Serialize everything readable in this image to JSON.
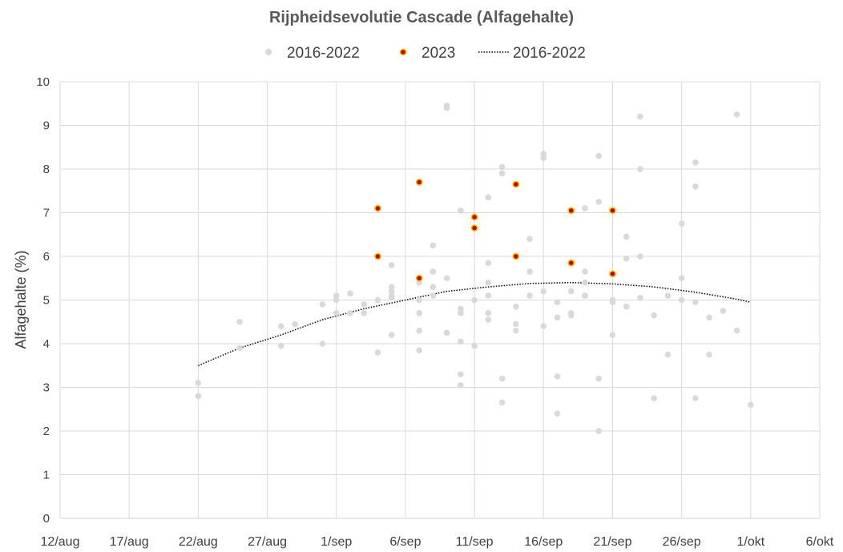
{
  "chart_data": {
    "type": "scatter",
    "title": "Rijpheidsevolutie Cascade (Alfagehalte)",
    "xlabel": "",
    "ylabel": "Alfagehalte (%)",
    "ylim": [
      0,
      10
    ],
    "yticks": [
      "0",
      "1",
      "2",
      "3",
      "4",
      "5",
      "6",
      "7",
      "8",
      "9",
      "10"
    ],
    "xlim": [
      "2023-08-12",
      "2023-10-06"
    ],
    "xticks": [
      "12/aug",
      "17/aug",
      "22/aug",
      "27/aug",
      "1/sep",
      "6/sep",
      "11/sep",
      "16/sep",
      "21/sep",
      "26/sep",
      "1/okt",
      "6/okt"
    ],
    "xtick_dates": [
      "2023-08-12",
      "2023-08-17",
      "2023-08-22",
      "2023-08-27",
      "2023-09-01",
      "2023-09-06",
      "2023-09-11",
      "2023-09-16",
      "2023-09-21",
      "2023-09-26",
      "2023-10-01",
      "2023-10-06"
    ],
    "grid": true,
    "legend_position": "top",
    "legend": [
      {
        "label": "2016-2022",
        "kind": "marker",
        "color": "#d9d9d9"
      },
      {
        "label": "2023",
        "kind": "marker",
        "color": "#c00000",
        "edge": "#ffc000"
      },
      {
        "label": "2016-2022",
        "kind": "trendline",
        "color": "#000000"
      }
    ],
    "series": [
      {
        "name": "2016-2022",
        "kind": "scatter",
        "color": "#d9d9d9",
        "points": [
          [
            "2023-08-22",
            3.1
          ],
          [
            "2023-08-22",
            2.8
          ],
          [
            "2023-08-25",
            4.5
          ],
          [
            "2023-08-25",
            3.9
          ],
          [
            "2023-08-28",
            4.4
          ],
          [
            "2023-08-28",
            3.95
          ],
          [
            "2023-08-29",
            4.45
          ],
          [
            "2023-08-31",
            4.9
          ],
          [
            "2023-08-31",
            4.0
          ],
          [
            "2023-09-01",
            5.1
          ],
          [
            "2023-09-01",
            5.0
          ],
          [
            "2023-09-01",
            4.7
          ],
          [
            "2023-09-02",
            5.15
          ],
          [
            "2023-09-02",
            4.7
          ],
          [
            "2023-09-03",
            4.9
          ],
          [
            "2023-09-03",
            4.7
          ],
          [
            "2023-09-04",
            5.0
          ],
          [
            "2023-09-04",
            3.8
          ],
          [
            "2023-09-05",
            5.8
          ],
          [
            "2023-09-05",
            5.3
          ],
          [
            "2023-09-05",
            5.2
          ],
          [
            "2023-09-05",
            5.1
          ],
          [
            "2023-09-05",
            5.05
          ],
          [
            "2023-09-05",
            4.2
          ],
          [
            "2023-09-07",
            5.4
          ],
          [
            "2023-09-07",
            5.0
          ],
          [
            "2023-09-07",
            4.7
          ],
          [
            "2023-09-07",
            4.3
          ],
          [
            "2023-09-07",
            3.85
          ],
          [
            "2023-09-08",
            6.25
          ],
          [
            "2023-09-08",
            5.65
          ],
          [
            "2023-09-08",
            5.3
          ],
          [
            "2023-09-08",
            5.1
          ],
          [
            "2023-09-09",
            9.45
          ],
          [
            "2023-09-09",
            9.4
          ],
          [
            "2023-09-09",
            5.5
          ],
          [
            "2023-09-09",
            4.25
          ],
          [
            "2023-09-10",
            7.05
          ],
          [
            "2023-09-10",
            4.8
          ],
          [
            "2023-09-10",
            4.7
          ],
          [
            "2023-09-10",
            4.05
          ],
          [
            "2023-09-10",
            3.3
          ],
          [
            "2023-09-10",
            3.05
          ],
          [
            "2023-09-11",
            5.0
          ],
          [
            "2023-09-11",
            3.95
          ],
          [
            "2023-09-12",
            7.35
          ],
          [
            "2023-09-12",
            5.85
          ],
          [
            "2023-09-12",
            5.4
          ],
          [
            "2023-09-12",
            5.1
          ],
          [
            "2023-09-12",
            4.7
          ],
          [
            "2023-09-12",
            4.55
          ],
          [
            "2023-09-13",
            8.05
          ],
          [
            "2023-09-13",
            7.9
          ],
          [
            "2023-09-13",
            3.2
          ],
          [
            "2023-09-13",
            2.65
          ],
          [
            "2023-09-14",
            4.85
          ],
          [
            "2023-09-14",
            4.45
          ],
          [
            "2023-09-14",
            4.3
          ],
          [
            "2023-09-15",
            6.4
          ],
          [
            "2023-09-15",
            5.65
          ],
          [
            "2023-09-15",
            5.1
          ],
          [
            "2023-09-16",
            8.35
          ],
          [
            "2023-09-16",
            8.25
          ],
          [
            "2023-09-16",
            5.2
          ],
          [
            "2023-09-16",
            4.4
          ],
          [
            "2023-09-17",
            4.95
          ],
          [
            "2023-09-17",
            4.6
          ],
          [
            "2023-09-17",
            3.25
          ],
          [
            "2023-09-17",
            2.4
          ],
          [
            "2023-09-18",
            5.2
          ],
          [
            "2023-09-18",
            4.7
          ],
          [
            "2023-09-18",
            4.65
          ],
          [
            "2023-09-19",
            7.1
          ],
          [
            "2023-09-19",
            5.65
          ],
          [
            "2023-09-19",
            5.4
          ],
          [
            "2023-09-19",
            5.1
          ],
          [
            "2023-09-20",
            8.3
          ],
          [
            "2023-09-20",
            7.25
          ],
          [
            "2023-09-20",
            3.2
          ],
          [
            "2023-09-20",
            2.0
          ],
          [
            "2023-09-21",
            5.0
          ],
          [
            "2023-09-21",
            4.95
          ],
          [
            "2023-09-21",
            4.2
          ],
          [
            "2023-09-22",
            6.45
          ],
          [
            "2023-09-22",
            5.95
          ],
          [
            "2023-09-22",
            4.85
          ],
          [
            "2023-09-23",
            9.2
          ],
          [
            "2023-09-23",
            8.0
          ],
          [
            "2023-09-23",
            6.0
          ],
          [
            "2023-09-23",
            5.05
          ],
          [
            "2023-09-24",
            4.65
          ],
          [
            "2023-09-24",
            2.75
          ],
          [
            "2023-09-25",
            5.1
          ],
          [
            "2023-09-25",
            3.75
          ],
          [
            "2023-09-26",
            6.75
          ],
          [
            "2023-09-26",
            5.5
          ],
          [
            "2023-09-26",
            5.0
          ],
          [
            "2023-09-27",
            8.15
          ],
          [
            "2023-09-27",
            7.6
          ],
          [
            "2023-09-27",
            4.95
          ],
          [
            "2023-09-27",
            2.75
          ],
          [
            "2023-09-28",
            4.6
          ],
          [
            "2023-09-28",
            3.75
          ],
          [
            "2023-09-29",
            4.75
          ],
          [
            "2023-09-30",
            9.25
          ],
          [
            "2023-09-30",
            4.3
          ],
          [
            "2023-10-01",
            2.6
          ]
        ]
      },
      {
        "name": "2023",
        "kind": "scatter",
        "color": "#c00000",
        "edge": "#ffc000",
        "points": [
          [
            "2023-09-04",
            7.1
          ],
          [
            "2023-09-04",
            6.0
          ],
          [
            "2023-09-07",
            7.7
          ],
          [
            "2023-09-07",
            5.5
          ],
          [
            "2023-09-11",
            6.9
          ],
          [
            "2023-09-11",
            6.65
          ],
          [
            "2023-09-14",
            7.65
          ],
          [
            "2023-09-14",
            6.0
          ],
          [
            "2023-09-18",
            7.05
          ],
          [
            "2023-09-18",
            5.85
          ],
          [
            "2023-09-21",
            7.05
          ],
          [
            "2023-09-21",
            5.6
          ]
        ]
      },
      {
        "name": "2016-2022",
        "kind": "trendline",
        "style": "dotted",
        "color": "#000000",
        "points": [
          [
            "2023-08-22",
            3.5
          ],
          [
            "2023-08-25",
            3.9
          ],
          [
            "2023-08-28",
            4.2
          ],
          [
            "2023-08-31",
            4.55
          ],
          [
            "2023-09-03",
            4.8
          ],
          [
            "2023-09-06",
            5.0
          ],
          [
            "2023-09-09",
            5.2
          ],
          [
            "2023-09-12",
            5.3
          ],
          [
            "2023-09-15",
            5.38
          ],
          [
            "2023-09-18",
            5.4
          ],
          [
            "2023-09-21",
            5.37
          ],
          [
            "2023-09-24",
            5.3
          ],
          [
            "2023-09-27",
            5.18
          ],
          [
            "2023-09-30",
            5.02
          ],
          [
            "2023-10-01",
            4.95
          ]
        ]
      }
    ]
  }
}
